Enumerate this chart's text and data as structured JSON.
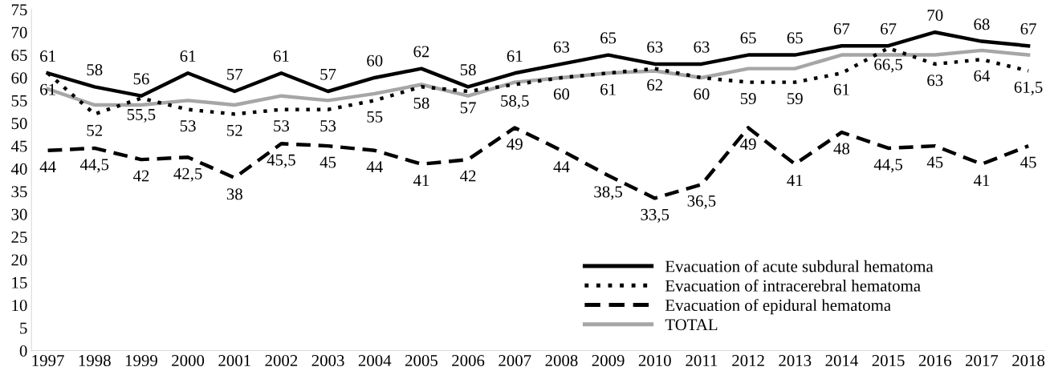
{
  "chart_data": {
    "type": "line",
    "categories": [
      "1997",
      "1998",
      "1999",
      "2000",
      "2001",
      "2002",
      "2003",
      "2004",
      "2005",
      "2006",
      "2007",
      "2008",
      "2009",
      "2010",
      "2011",
      "2012",
      "2013",
      "2014",
      "2015",
      "2016",
      "2017",
      "2018"
    ],
    "series": [
      {
        "name": "Evacuation of acute subdural hematoma",
        "color": "#000000",
        "line_style": "solid",
        "values": [
          61,
          58,
          56,
          61,
          57,
          61,
          57,
          60,
          62,
          58,
          61,
          63,
          65,
          63,
          63,
          65,
          65,
          67,
          67,
          70,
          68,
          67
        ],
        "value_labels": [
          "61",
          "58",
          "56",
          "61",
          "57",
          "61",
          "57",
          "60",
          "62",
          "58",
          "61",
          "63",
          "65",
          "63",
          "63",
          "65",
          "65",
          "67",
          "67",
          "70",
          "68",
          "67"
        ]
      },
      {
        "name": "Evacuation of intracerebral hematoma",
        "color": "#000000",
        "line_style": "dotted",
        "values": [
          61,
          52,
          55.5,
          53,
          52,
          53,
          53,
          55,
          58,
          57,
          58.5,
          60,
          61,
          62,
          60,
          59,
          59,
          61,
          66.5,
          63,
          64,
          61.5
        ],
        "value_labels": [
          "61",
          "52",
          "55,5",
          "53",
          "52",
          "53",
          "53",
          "55",
          "58",
          "57",
          "58,5",
          "60",
          "61",
          "62",
          "60",
          "59",
          "59",
          "61",
          "66,5",
          "63",
          "64",
          "61,5"
        ]
      },
      {
        "name": "Evacuation of epidural hematoma",
        "color": "#000000",
        "line_style": "dashed",
        "values": [
          44,
          44.5,
          42,
          42.5,
          38,
          45.5,
          45,
          44,
          41,
          42,
          49,
          44,
          38.5,
          33.5,
          36.5,
          49,
          41,
          48,
          44.5,
          45,
          41,
          45
        ],
        "value_labels": [
          "44",
          "44,5",
          "42",
          "42,5",
          "38",
          "45,5",
          "45",
          "44",
          "41",
          "42",
          "49",
          "44",
          "38,5",
          "33,5",
          "36,5",
          "49",
          "41",
          "48",
          "44,5",
          "45",
          "41",
          "45"
        ]
      },
      {
        "name": "TOTAL",
        "color": "#a6a6a6",
        "line_style": "solid",
        "values": [
          57.5,
          54,
          54,
          55,
          54,
          56,
          55,
          56.5,
          58.5,
          56,
          59,
          60,
          61,
          61.5,
          60,
          62,
          62,
          65,
          65,
          65,
          66,
          65
        ]
      }
    ],
    "ylim": [
      0,
      75
    ],
    "yticks": [
      0,
      5,
      10,
      15,
      20,
      25,
      30,
      35,
      40,
      45,
      50,
      55,
      60,
      65,
      70,
      75
    ],
    "grid": false,
    "legend": "bottom right",
    "marker": "none"
  }
}
